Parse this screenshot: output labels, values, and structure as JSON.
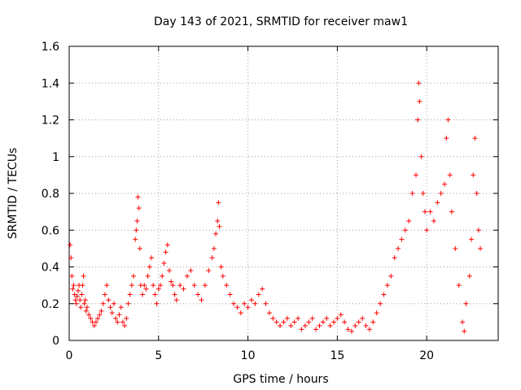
{
  "chart_data": {
    "type": "scatter",
    "title": "Day 143 of 2021, SRMTID for receiver maw1",
    "xlabel": "GPS time / hours",
    "ylabel": "SRMTID / TECUs",
    "xlim": [
      0,
      24
    ],
    "ylim": [
      0,
      1.6
    ],
    "grid": true,
    "marker": "+",
    "marker_color": "#ff0000",
    "xticks": [
      0,
      5,
      10,
      15,
      20
    ],
    "xtick_labels": [
      "0",
      "5",
      "10",
      "15",
      "20"
    ],
    "yticks": [
      0,
      0.2,
      0.4,
      0.6,
      0.8,
      1.0,
      1.2,
      1.4,
      1.6
    ],
    "ytick_labels": [
      "0",
      "0.2",
      "0.4",
      "0.6",
      "0.8",
      "1",
      "1.2",
      "1.4",
      "1.6"
    ],
    "series": [
      {
        "name": "SRMTID",
        "points": [
          [
            0.05,
            0.52
          ],
          [
            0.1,
            0.45
          ],
          [
            0.15,
            0.35
          ],
          [
            0.2,
            0.28
          ],
          [
            0.25,
            0.3
          ],
          [
            0.3,
            0.25
          ],
          [
            0.35,
            0.22
          ],
          [
            0.4,
            0.2
          ],
          [
            0.45,
            0.24
          ],
          [
            0.5,
            0.27
          ],
          [
            0.55,
            0.3
          ],
          [
            0.6,
            0.22
          ],
          [
            0.65,
            0.18
          ],
          [
            0.7,
            0.25
          ],
          [
            0.75,
            0.3
          ],
          [
            0.8,
            0.35
          ],
          [
            0.85,
            0.2
          ],
          [
            0.9,
            0.22
          ],
          [
            0.95,
            0.16
          ],
          [
            1.0,
            0.18
          ],
          [
            1.1,
            0.14
          ],
          [
            1.2,
            0.12
          ],
          [
            1.3,
            0.1
          ],
          [
            1.4,
            0.08
          ],
          [
            1.5,
            0.1
          ],
          [
            1.6,
            0.12
          ],
          [
            1.7,
            0.14
          ],
          [
            1.8,
            0.16
          ],
          [
            1.9,
            0.2
          ],
          [
            2.0,
            0.25
          ],
          [
            2.1,
            0.3
          ],
          [
            2.2,
            0.22
          ],
          [
            2.3,
            0.18
          ],
          [
            2.4,
            0.15
          ],
          [
            2.5,
            0.2
          ],
          [
            2.6,
            0.12
          ],
          [
            2.7,
            0.1
          ],
          [
            2.8,
            0.14
          ],
          [
            2.9,
            0.18
          ],
          [
            3.0,
            0.1
          ],
          [
            3.1,
            0.08
          ],
          [
            3.2,
            0.12
          ],
          [
            3.3,
            0.2
          ],
          [
            3.4,
            0.25
          ],
          [
            3.5,
            0.3
          ],
          [
            3.6,
            0.35
          ],
          [
            3.7,
            0.55
          ],
          [
            3.75,
            0.6
          ],
          [
            3.8,
            0.65
          ],
          [
            3.85,
            0.78
          ],
          [
            3.9,
            0.72
          ],
          [
            3.95,
            0.5
          ],
          [
            4.0,
            0.3
          ],
          [
            4.1,
            0.25
          ],
          [
            4.2,
            0.3
          ],
          [
            4.3,
            0.28
          ],
          [
            4.4,
            0.35
          ],
          [
            4.5,
            0.4
          ],
          [
            4.6,
            0.45
          ],
          [
            4.7,
            0.3
          ],
          [
            4.8,
            0.25
          ],
          [
            4.9,
            0.2
          ],
          [
            5.0,
            0.28
          ],
          [
            5.1,
            0.3
          ],
          [
            5.2,
            0.35
          ],
          [
            5.3,
            0.42
          ],
          [
            5.4,
            0.48
          ],
          [
            5.5,
            0.52
          ],
          [
            5.6,
            0.38
          ],
          [
            5.7,
            0.32
          ],
          [
            5.8,
            0.3
          ],
          [
            5.9,
            0.25
          ],
          [
            6.0,
            0.22
          ],
          [
            6.2,
            0.3
          ],
          [
            6.4,
            0.28
          ],
          [
            6.6,
            0.35
          ],
          [
            6.8,
            0.38
          ],
          [
            7.0,
            0.3
          ],
          [
            7.2,
            0.25
          ],
          [
            7.4,
            0.22
          ],
          [
            7.6,
            0.3
          ],
          [
            7.8,
            0.38
          ],
          [
            8.0,
            0.45
          ],
          [
            8.1,
            0.5
          ],
          [
            8.2,
            0.58
          ],
          [
            8.3,
            0.65
          ],
          [
            8.35,
            0.75
          ],
          [
            8.4,
            0.62
          ],
          [
            8.5,
            0.4
          ],
          [
            8.6,
            0.35
          ],
          [
            8.8,
            0.3
          ],
          [
            9.0,
            0.25
          ],
          [
            9.2,
            0.2
          ],
          [
            9.4,
            0.18
          ],
          [
            9.6,
            0.15
          ],
          [
            9.8,
            0.2
          ],
          [
            10.0,
            0.18
          ],
          [
            10.2,
            0.22
          ],
          [
            10.4,
            0.2
          ],
          [
            10.6,
            0.25
          ],
          [
            10.8,
            0.28
          ],
          [
            11.0,
            0.2
          ],
          [
            11.2,
            0.15
          ],
          [
            11.4,
            0.12
          ],
          [
            11.6,
            0.1
          ],
          [
            11.8,
            0.08
          ],
          [
            12.0,
            0.1
          ],
          [
            12.2,
            0.12
          ],
          [
            12.4,
            0.08
          ],
          [
            12.6,
            0.1
          ],
          [
            12.8,
            0.12
          ],
          [
            13.0,
            0.06
          ],
          [
            13.2,
            0.08
          ],
          [
            13.4,
            0.1
          ],
          [
            13.6,
            0.12
          ],
          [
            13.8,
            0.06
          ],
          [
            14.0,
            0.08
          ],
          [
            14.2,
            0.1
          ],
          [
            14.4,
            0.12
          ],
          [
            14.6,
            0.08
          ],
          [
            14.8,
            0.1
          ],
          [
            15.0,
            0.12
          ],
          [
            15.2,
            0.14
          ],
          [
            15.4,
            0.1
          ],
          [
            15.6,
            0.06
          ],
          [
            15.8,
            0.05
          ],
          [
            16.0,
            0.08
          ],
          [
            16.2,
            0.1
          ],
          [
            16.4,
            0.12
          ],
          [
            16.6,
            0.08
          ],
          [
            16.8,
            0.06
          ],
          [
            17.0,
            0.1
          ],
          [
            17.2,
            0.15
          ],
          [
            17.4,
            0.2
          ],
          [
            17.6,
            0.25
          ],
          [
            17.8,
            0.3
          ],
          [
            18.0,
            0.35
          ],
          [
            18.2,
            0.45
          ],
          [
            18.4,
            0.5
          ],
          [
            18.6,
            0.55
          ],
          [
            18.8,
            0.6
          ],
          [
            19.0,
            0.65
          ],
          [
            19.2,
            0.8
          ],
          [
            19.4,
            0.9
          ],
          [
            19.5,
            1.2
          ],
          [
            19.55,
            1.4
          ],
          [
            19.6,
            1.3
          ],
          [
            19.7,
            1.0
          ],
          [
            19.8,
            0.8
          ],
          [
            19.9,
            0.7
          ],
          [
            20.0,
            0.6
          ],
          [
            20.2,
            0.7
          ],
          [
            20.4,
            0.65
          ],
          [
            20.6,
            0.75
          ],
          [
            20.8,
            0.8
          ],
          [
            21.0,
            0.85
          ],
          [
            21.1,
            1.1
          ],
          [
            21.2,
            1.2
          ],
          [
            21.3,
            0.9
          ],
          [
            21.4,
            0.7
          ],
          [
            21.6,
            0.5
          ],
          [
            21.8,
            0.3
          ],
          [
            22.0,
            0.1
          ],
          [
            22.1,
            0.05
          ],
          [
            22.2,
            0.2
          ],
          [
            22.4,
            0.35
          ],
          [
            22.5,
            0.55
          ],
          [
            22.6,
            0.9
          ],
          [
            22.7,
            1.1
          ],
          [
            22.8,
            0.8
          ],
          [
            22.9,
            0.6
          ],
          [
            23.0,
            0.5
          ]
        ]
      }
    ]
  }
}
